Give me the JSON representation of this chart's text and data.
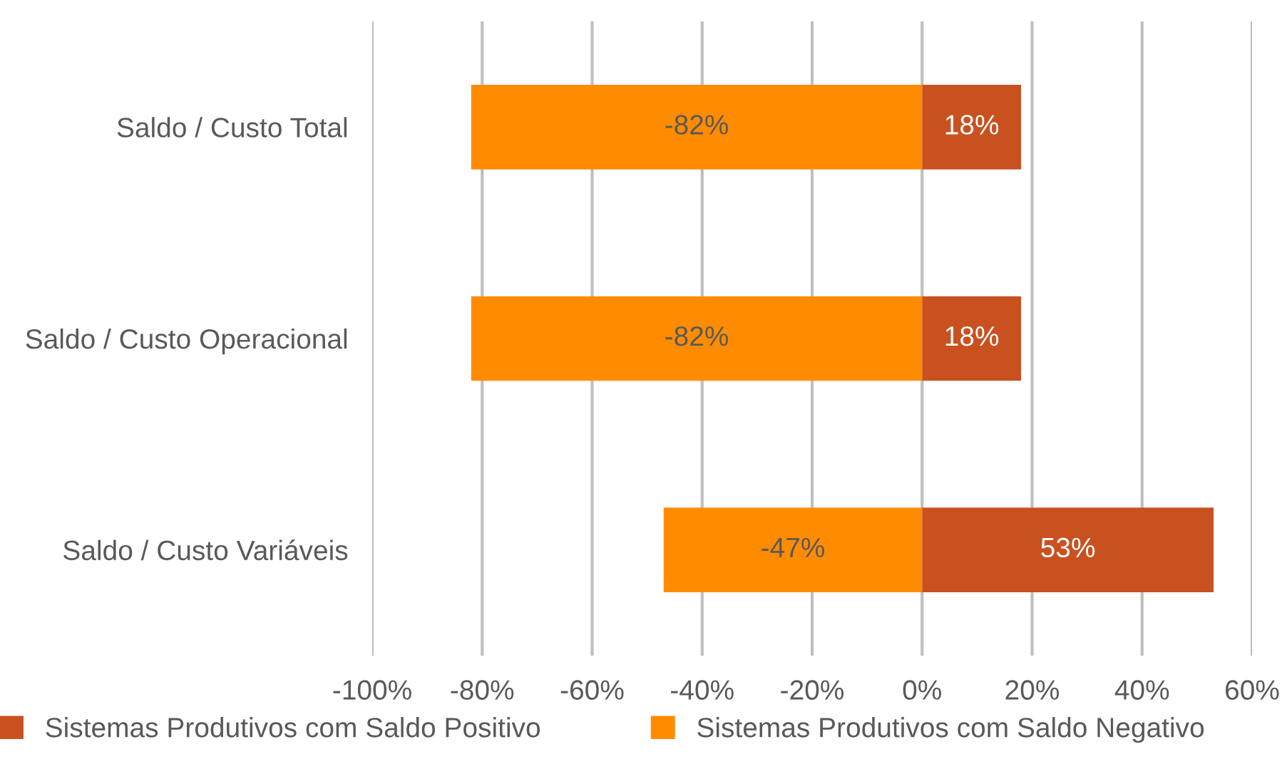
{
  "chart_data": {
    "type": "bar",
    "orientation": "horizontal",
    "categories": [
      "Saldo / Custo Total",
      "Saldo / Custo Operacional",
      "Saldo / Custo Variáveis"
    ],
    "series": [
      {
        "name": "Sistemas Produtivos com Saldo Positivo",
        "color": "#c9511f",
        "values": [
          18,
          18,
          53
        ],
        "value_labels": [
          "18%",
          "18%",
          "53%"
        ]
      },
      {
        "name": "Sistemas Produtivos com Saldo Negativo",
        "color": "#ff8c00",
        "values": [
          -82,
          -82,
          -47
        ],
        "value_labels": [
          "-82%",
          "-82%",
          "-47%"
        ]
      }
    ],
    "xlim": [
      -100,
      60
    ],
    "xticks": [
      {
        "value": -100,
        "label": "-100%"
      },
      {
        "value": -80,
        "label": "-80%"
      },
      {
        "value": -60,
        "label": "-60%"
      },
      {
        "value": -40,
        "label": "-40%"
      },
      {
        "value": -20,
        "label": "-20%"
      },
      {
        "value": 0,
        "label": "0%"
      },
      {
        "value": 20,
        "label": "20%"
      },
      {
        "value": 40,
        "label": "40%"
      },
      {
        "value": 60,
        "label": "60%"
      }
    ],
    "stacked": true,
    "grid": "x",
    "legend": "bottom"
  }
}
